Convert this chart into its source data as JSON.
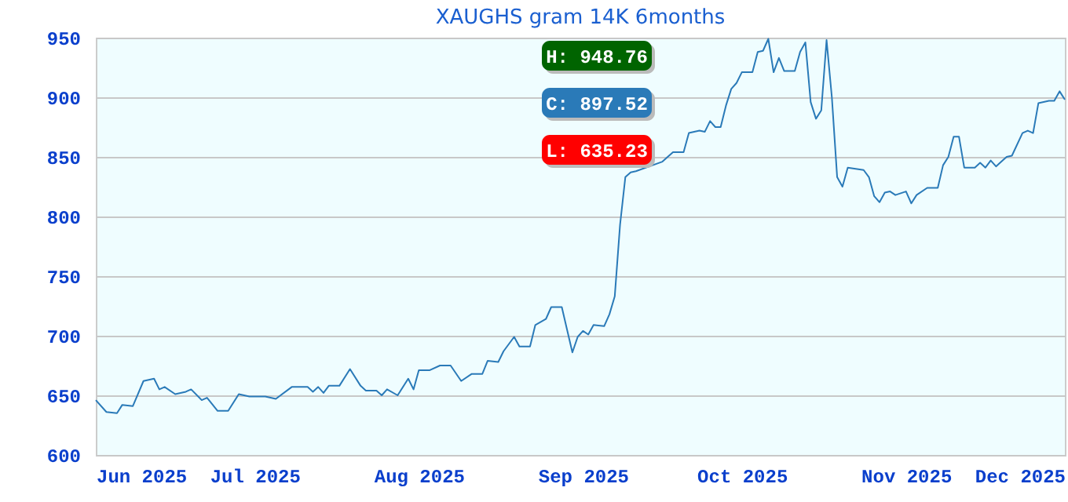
{
  "chart_data": {
    "type": "line",
    "title": "XAUGHS gram 14K 6months",
    "x": [
      "2025-06-01",
      "2025-06-03",
      "2025-06-05",
      "2025-06-06",
      "2025-06-08",
      "2025-06-10",
      "2025-06-12",
      "2025-06-13",
      "2025-06-14",
      "2025-06-16",
      "2025-06-18",
      "2025-06-19",
      "2025-06-21",
      "2025-06-22",
      "2025-06-24",
      "2025-06-26",
      "2025-06-28",
      "2025-06-30",
      "2025-07-03",
      "2025-07-05",
      "2025-07-08",
      "2025-07-11",
      "2025-07-12",
      "2025-07-13",
      "2025-07-14",
      "2025-07-15",
      "2025-07-17",
      "2025-07-19",
      "2025-07-21",
      "2025-07-22",
      "2025-07-24",
      "2025-07-25",
      "2025-07-26",
      "2025-07-28",
      "2025-07-30",
      "2025-07-31",
      "2025-08-01",
      "2025-08-03",
      "2025-08-05",
      "2025-08-07",
      "2025-08-09",
      "2025-08-11",
      "2025-08-13",
      "2025-08-14",
      "2025-08-16",
      "2025-08-17",
      "2025-08-19",
      "2025-08-20",
      "2025-08-22",
      "2025-08-23",
      "2025-08-25",
      "2025-08-26",
      "2025-08-28",
      "2025-08-29",
      "2025-08-30",
      "2025-08-31",
      "2025-09-01",
      "2025-09-02",
      "2025-09-03",
      "2025-09-05",
      "2025-09-06",
      "2025-09-07",
      "2025-09-08",
      "2025-09-09",
      "2025-09-10",
      "2025-09-11",
      "2025-09-16",
      "2025-09-18",
      "2025-09-20",
      "2025-09-21",
      "2025-09-23",
      "2025-09-24",
      "2025-09-25",
      "2025-09-26",
      "2025-09-27",
      "2025-09-28",
      "2025-09-29",
      "2025-09-30",
      "2025-10-01",
      "2025-10-03",
      "2025-10-04",
      "2025-10-05",
      "2025-10-06",
      "2025-10-07",
      "2025-10-08",
      "2025-10-09",
      "2025-10-11",
      "2025-10-12",
      "2025-10-13",
      "2025-10-14",
      "2025-10-15",
      "2025-10-16",
      "2025-10-17",
      "2025-10-18",
      "2025-10-19",
      "2025-10-20",
      "2025-10-21",
      "2025-10-24",
      "2025-10-25",
      "2025-10-26",
      "2025-10-27",
      "2025-10-28",
      "2025-10-29",
      "2025-10-30",
      "2025-11-01",
      "2025-11-02",
      "2025-11-03",
      "2025-11-05",
      "2025-11-07",
      "2025-11-08",
      "2025-11-09",
      "2025-11-10",
      "2025-11-11",
      "2025-11-12",
      "2025-11-14",
      "2025-11-15",
      "2025-11-16",
      "2025-11-17",
      "2025-11-18",
      "2025-11-20",
      "2025-11-21",
      "2025-11-23",
      "2025-11-24",
      "2025-11-25",
      "2025-11-26",
      "2025-11-28",
      "2025-11-29",
      "2025-11-30",
      "2025-12-01"
    ],
    "series": [
      {
        "color": "#2a7ab8",
        "values": [
          646,
          636,
          635,
          642,
          641,
          662,
          664,
          655,
          657,
          651,
          653,
          655,
          646,
          648,
          637,
          637,
          651,
          649,
          649,
          647,
          657,
          657,
          653,
          657,
          652,
          658,
          658,
          672,
          658,
          654,
          654,
          650,
          655,
          650,
          664,
          655,
          671,
          671,
          675,
          675,
          662,
          668,
          668,
          679,
          678,
          687,
          699,
          691,
          691,
          709,
          714,
          724,
          724,
          705,
          686,
          699,
          704,
          701,
          709,
          708,
          718,
          733,
          793,
          833,
          837,
          838,
          846,
          854,
          854,
          870,
          872,
          871,
          880,
          875,
          875,
          893,
          907,
          912,
          921,
          921,
          938,
          939,
          949,
          921,
          933,
          922,
          922,
          938,
          946,
          896,
          882,
          889,
          948,
          900,
          833,
          825,
          841,
          839,
          833,
          817,
          812,
          820,
          821,
          818,
          821,
          811,
          818,
          824,
          824,
          843,
          850,
          867,
          867,
          841,
          841,
          845,
          841,
          847,
          842,
          850,
          851,
          870,
          872,
          870,
          895,
          897,
          897,
          905,
          898
        ]
      }
    ],
    "xlim": [
      "2025-06-01",
      "2025-12-01"
    ],
    "xticks": [
      {
        "value": "2025-06-01",
        "label": "Jun 2025"
      },
      {
        "value": "2025-07-01",
        "label": "Jul 2025"
      },
      {
        "value": "2025-08-01",
        "label": "Aug 2025"
      },
      {
        "value": "2025-09-01",
        "label": "Sep 2025"
      },
      {
        "value": "2025-10-01",
        "label": "Oct 2025"
      },
      {
        "value": "2025-11-01",
        "label": "Nov 2025"
      },
      {
        "value": "2025-12-01",
        "label": "Dec 2025"
      }
    ],
    "ylim": [
      600,
      950
    ],
    "yticks": [
      600,
      650,
      700,
      750,
      800,
      850,
      900,
      950
    ],
    "grid": "y",
    "marker": "none",
    "line_style": "solid",
    "annotations": [
      "H: 948.76",
      "C: 897.52",
      "L: 635.23"
    ]
  }
}
